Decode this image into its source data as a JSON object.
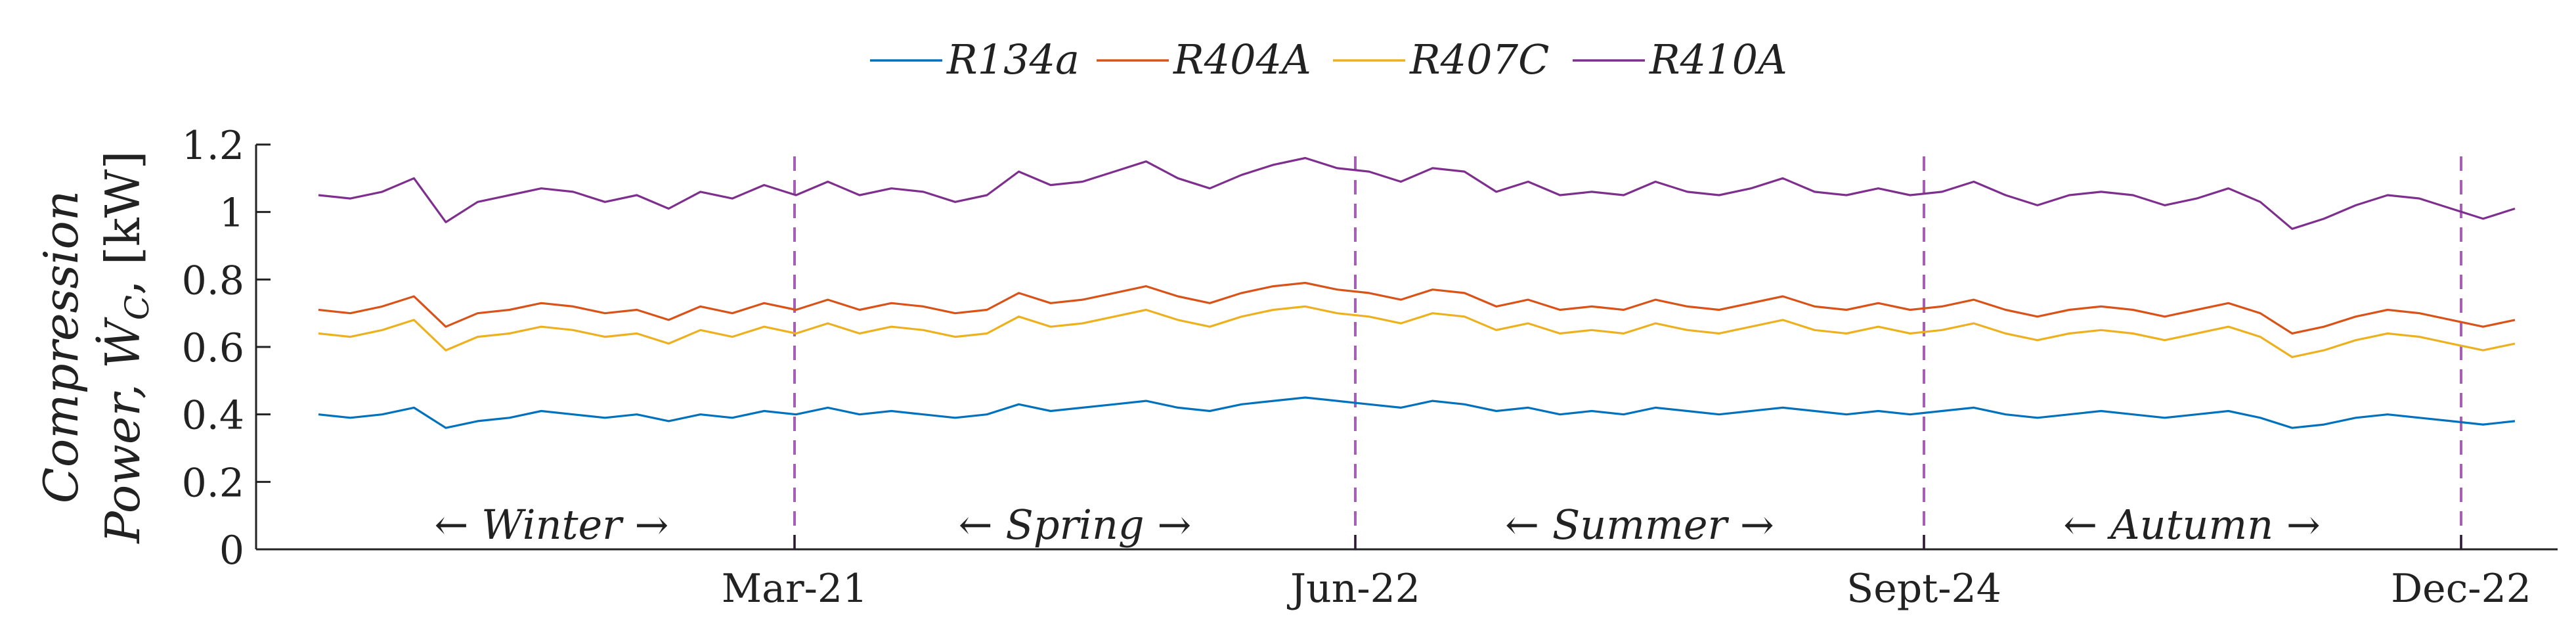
{
  "chart_data": {
    "type": "line",
    "ylabel_line1": "Compression",
    "ylabel_line2": "Power, Ẇ",
    "ylabel_subscript": "C",
    "ylabel_unit": ", [kW]",
    "ylim": [
      0,
      1.2
    ],
    "yticks": [
      "0",
      "0.2",
      "0.4",
      "0.6",
      "0.8",
      "1",
      "1.2"
    ],
    "x_range": [
      "Dec-22",
      "Dec-22"
    ],
    "xticks": [
      {
        "label": "Mar-21",
        "date": "Mar-21"
      },
      {
        "label": "Jun-22",
        "date": "Jun-22"
      },
      {
        "label": "Sept-24",
        "date": "Sept-24"
      },
      {
        "label": "Dec-22",
        "date": "Dec-22"
      }
    ],
    "season_boundaries": [
      "Mar-21",
      "Jun-22",
      "Sept-24",
      "Dec-22"
    ],
    "seasons": [
      "← Winter →",
      "← Spring →",
      "← Summer →",
      "← Autumn →"
    ],
    "legend_position": "top-center",
    "grid": false,
    "series": [
      {
        "name": "R134a",
        "color": "#0072BD",
        "values": [
          0.4,
          0.39,
          0.4,
          0.42,
          0.36,
          0.38,
          0.39,
          0.41,
          0.4,
          0.39,
          0.4,
          0.38,
          0.4,
          0.39,
          0.41,
          0.4,
          0.42,
          0.4,
          0.41,
          0.4,
          0.39,
          0.4,
          0.43,
          0.41,
          0.42,
          0.43,
          0.44,
          0.42,
          0.41,
          0.43,
          0.44,
          0.45,
          0.44,
          0.43,
          0.42,
          0.44,
          0.43,
          0.41,
          0.42,
          0.4,
          0.41,
          0.4,
          0.42,
          0.41,
          0.4,
          0.41,
          0.42,
          0.41,
          0.4,
          0.41,
          0.4,
          0.41,
          0.42,
          0.4,
          0.39,
          0.4,
          0.41,
          0.4,
          0.39,
          0.4,
          0.41,
          0.39,
          0.36,
          0.37,
          0.39,
          0.4,
          0.39,
          0.38,
          0.37,
          0.38
        ]
      },
      {
        "name": "R404A",
        "color": "#D95319",
        "values": [
          0.71,
          0.7,
          0.72,
          0.75,
          0.66,
          0.7,
          0.71,
          0.73,
          0.72,
          0.7,
          0.71,
          0.68,
          0.72,
          0.7,
          0.73,
          0.71,
          0.74,
          0.71,
          0.73,
          0.72,
          0.7,
          0.71,
          0.76,
          0.73,
          0.74,
          0.76,
          0.78,
          0.75,
          0.73,
          0.76,
          0.78,
          0.79,
          0.77,
          0.76,
          0.74,
          0.77,
          0.76,
          0.72,
          0.74,
          0.71,
          0.72,
          0.71,
          0.74,
          0.72,
          0.71,
          0.73,
          0.75,
          0.72,
          0.71,
          0.73,
          0.71,
          0.72,
          0.74,
          0.71,
          0.69,
          0.71,
          0.72,
          0.71,
          0.69,
          0.71,
          0.73,
          0.7,
          0.64,
          0.66,
          0.69,
          0.71,
          0.7,
          0.68,
          0.66,
          0.68
        ]
      },
      {
        "name": "R407C",
        "color": "#EDB120",
        "values": [
          0.64,
          0.63,
          0.65,
          0.68,
          0.59,
          0.63,
          0.64,
          0.66,
          0.65,
          0.63,
          0.64,
          0.61,
          0.65,
          0.63,
          0.66,
          0.64,
          0.67,
          0.64,
          0.66,
          0.65,
          0.63,
          0.64,
          0.69,
          0.66,
          0.67,
          0.69,
          0.71,
          0.68,
          0.66,
          0.69,
          0.71,
          0.72,
          0.7,
          0.69,
          0.67,
          0.7,
          0.69,
          0.65,
          0.67,
          0.64,
          0.65,
          0.64,
          0.67,
          0.65,
          0.64,
          0.66,
          0.68,
          0.65,
          0.64,
          0.66,
          0.64,
          0.65,
          0.67,
          0.64,
          0.62,
          0.64,
          0.65,
          0.64,
          0.62,
          0.64,
          0.66,
          0.63,
          0.57,
          0.59,
          0.62,
          0.64,
          0.63,
          0.61,
          0.59,
          0.61
        ]
      },
      {
        "name": "R410A",
        "color": "#7E2F8E",
        "values": [
          1.05,
          1.04,
          1.06,
          1.1,
          0.97,
          1.03,
          1.05,
          1.07,
          1.06,
          1.03,
          1.05,
          1.01,
          1.06,
          1.04,
          1.08,
          1.05,
          1.09,
          1.05,
          1.07,
          1.06,
          1.03,
          1.05,
          1.12,
          1.08,
          1.09,
          1.12,
          1.15,
          1.1,
          1.07,
          1.11,
          1.14,
          1.16,
          1.13,
          1.12,
          1.09,
          1.13,
          1.12,
          1.06,
          1.09,
          1.05,
          1.06,
          1.05,
          1.09,
          1.06,
          1.05,
          1.07,
          1.1,
          1.06,
          1.05,
          1.07,
          1.05,
          1.06,
          1.09,
          1.05,
          1.02,
          1.05,
          1.06,
          1.05,
          1.02,
          1.04,
          1.07,
          1.03,
          0.95,
          0.98,
          1.02,
          1.05,
          1.04,
          1.01,
          0.98,
          1.01
        ]
      }
    ]
  }
}
